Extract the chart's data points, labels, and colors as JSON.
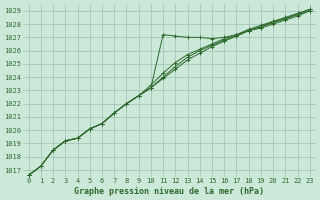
{
  "title": "Graphe pression niveau de la mer (hPa)",
  "x_hours": [
    0,
    1,
    2,
    3,
    4,
    5,
    6,
    7,
    8,
    9,
    10,
    11,
    12,
    13,
    14,
    15,
    16,
    17,
    18,
    19,
    20,
    21,
    22,
    23
  ],
  "line1": [
    1016.6,
    1017.3,
    1018.5,
    1019.2,
    1019.4,
    1020.1,
    1020.5,
    1021.3,
    1022.0,
    1022.6,
    1023.2,
    1027.2,
    1027.1,
    1027.0,
    1027.0,
    1026.9,
    1027.0,
    1027.2,
    1027.5,
    1027.7,
    1028.0,
    1028.3,
    1028.6,
    1029.0
  ],
  "line2": [
    1016.6,
    1017.3,
    1018.5,
    1019.2,
    1019.4,
    1020.1,
    1020.5,
    1021.3,
    1022.0,
    1022.6,
    1023.4,
    1024.3,
    1025.1,
    1025.7,
    1026.1,
    1026.5,
    1026.9,
    1027.2,
    1027.6,
    1027.9,
    1028.2,
    1028.4,
    1028.7,
    1029.0
  ],
  "line3": [
    1016.6,
    1017.3,
    1018.5,
    1019.2,
    1019.4,
    1020.1,
    1020.5,
    1021.3,
    1022.0,
    1022.6,
    1023.2,
    1024.0,
    1024.8,
    1025.5,
    1026.0,
    1026.4,
    1026.8,
    1027.1,
    1027.5,
    1027.8,
    1028.2,
    1028.5,
    1028.8,
    1029.1
  ],
  "line4": [
    1016.6,
    1017.3,
    1018.5,
    1019.2,
    1019.4,
    1020.1,
    1020.5,
    1021.3,
    1022.0,
    1022.6,
    1023.2,
    1023.9,
    1024.6,
    1025.3,
    1025.8,
    1026.3,
    1026.7,
    1027.1,
    1027.5,
    1027.8,
    1028.1,
    1028.4,
    1028.8,
    1029.1
  ],
  "line_color": "#2d6a2d",
  "bg_color": "#cce8d8",
  "grid_color": "#9dbfb0",
  "ylim_min": 1016.5,
  "ylim_max": 1029.5,
  "yticks": [
    1017,
    1018,
    1019,
    1020,
    1021,
    1022,
    1023,
    1024,
    1025,
    1026,
    1027,
    1028,
    1029
  ],
  "marker": "+",
  "marker_size": 3,
  "linewidth": 0.7,
  "tick_fontsize": 5,
  "xlabel_fontsize": 6,
  "xlabel_fontweight": "bold"
}
